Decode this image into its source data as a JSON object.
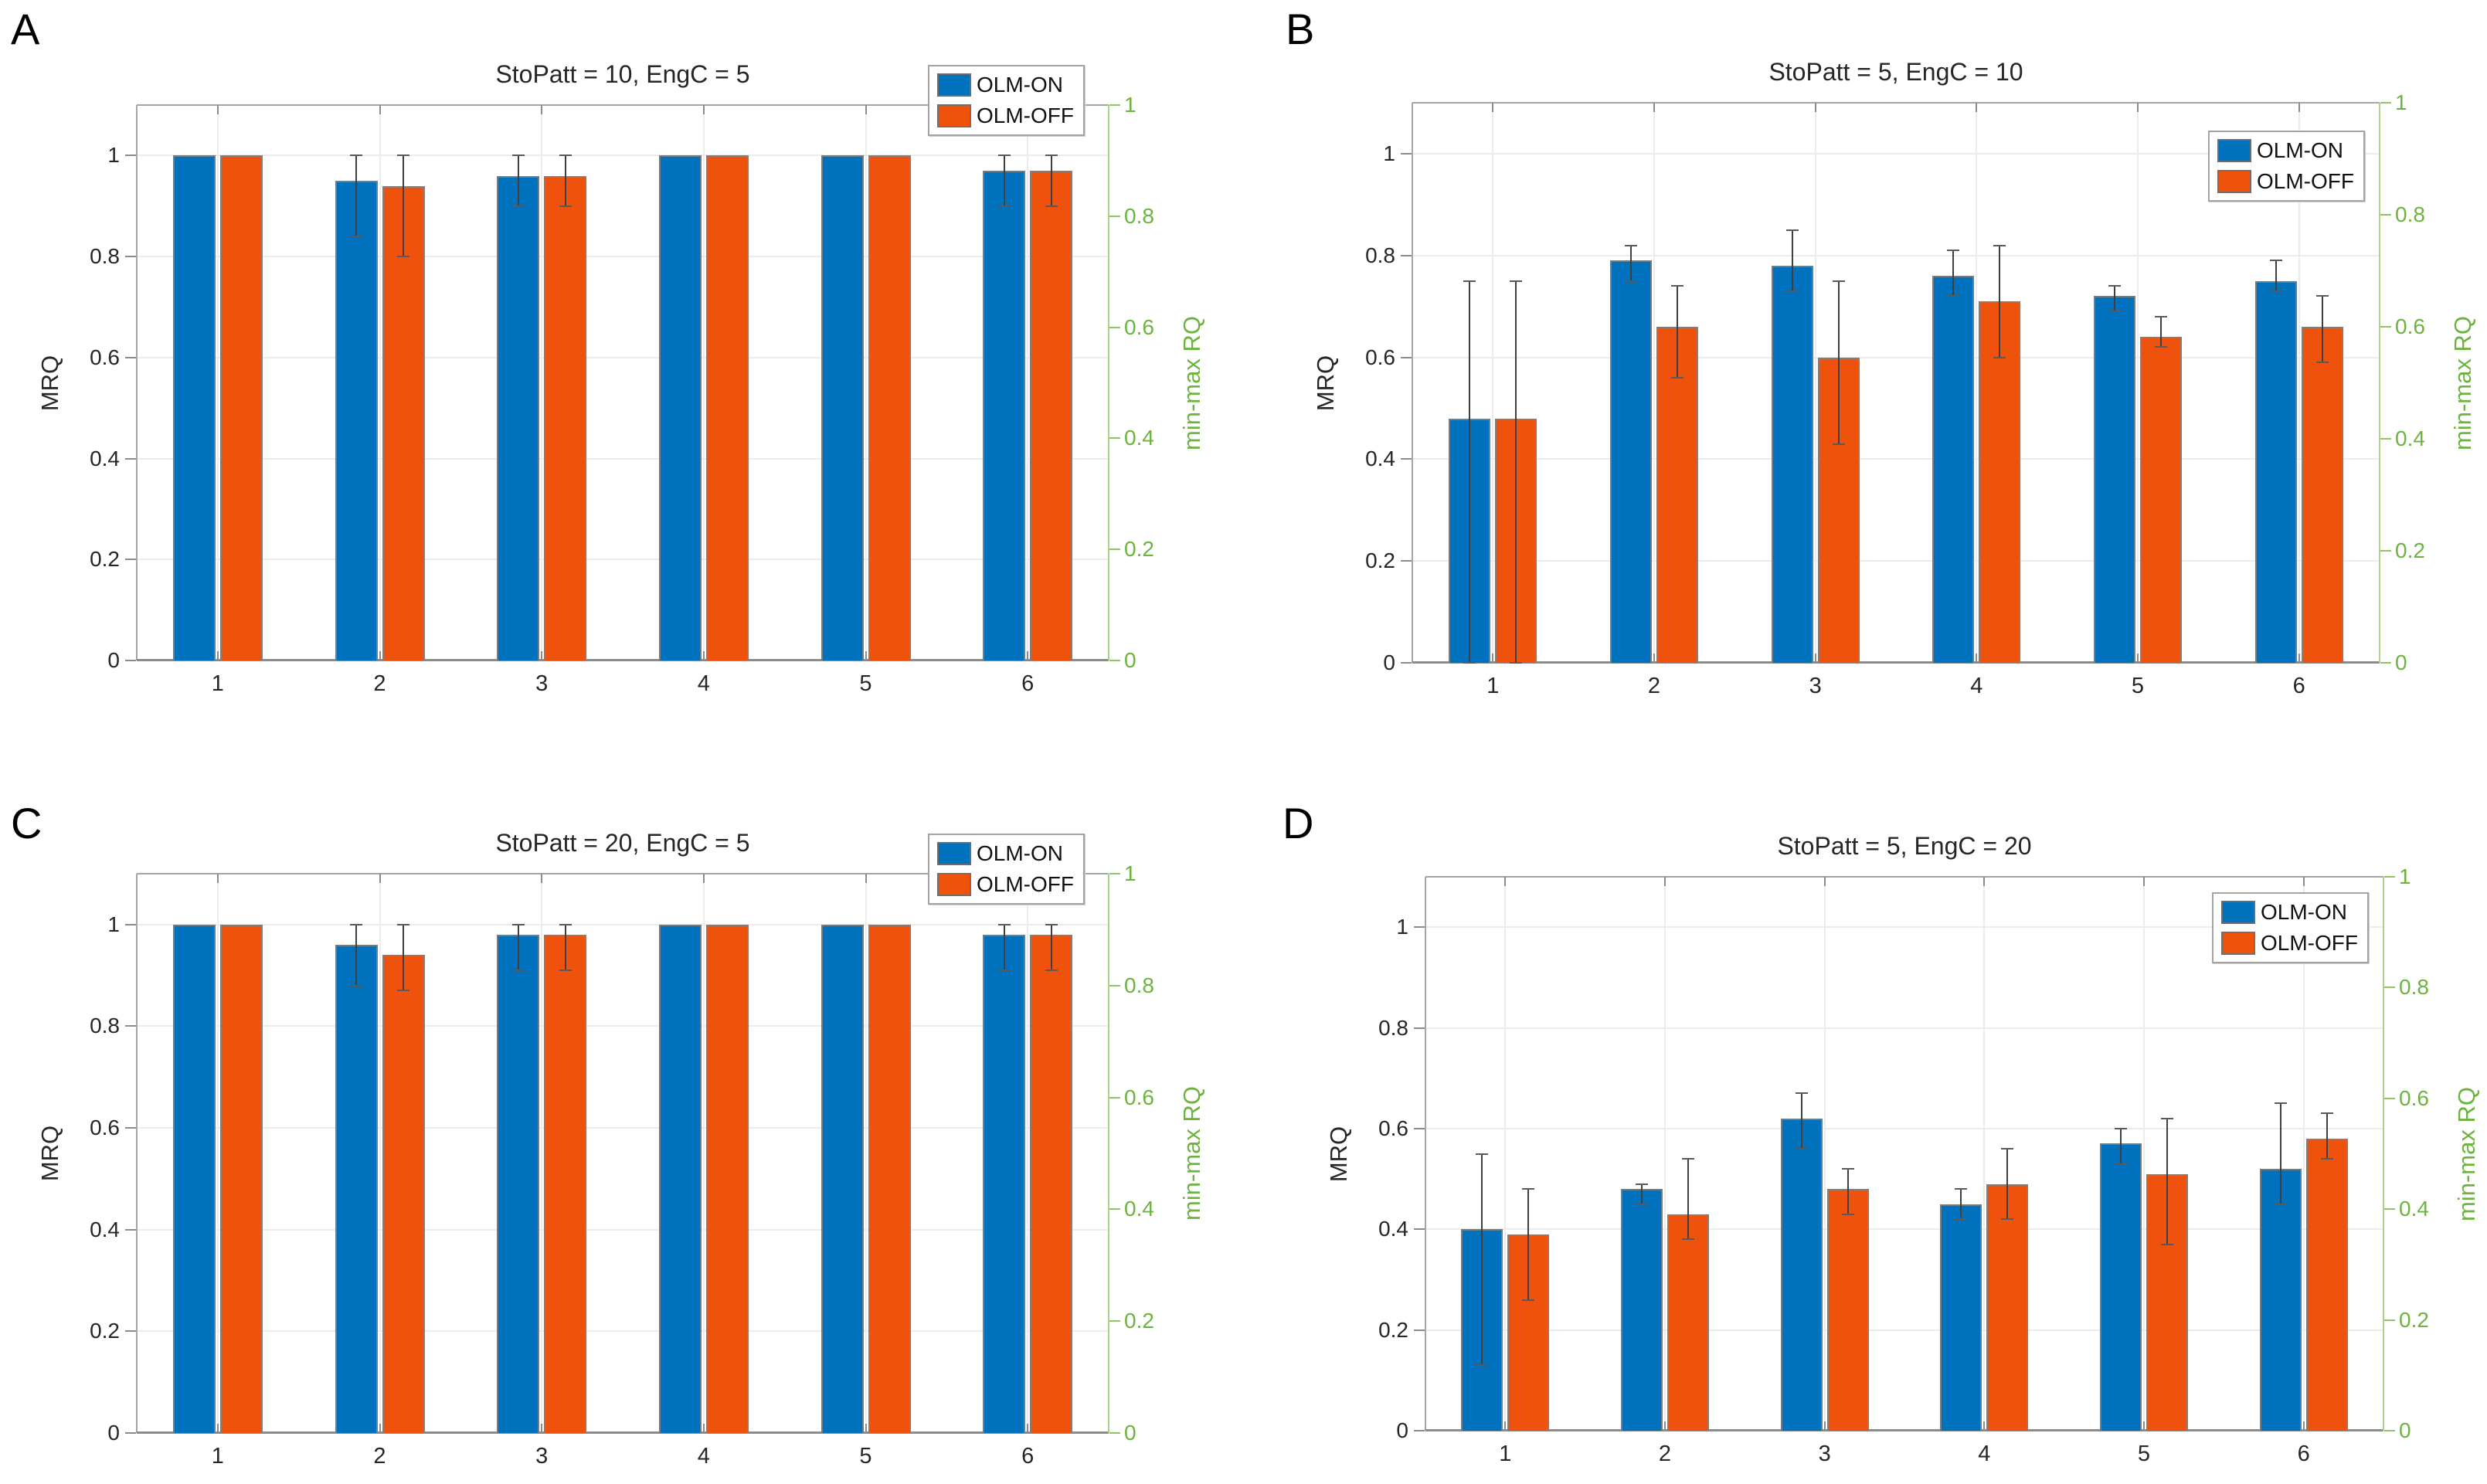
{
  "figure": {
    "background": "#ffffff",
    "colors": {
      "olm_on": "#0072BD",
      "olm_off": "#EE520D",
      "right_axis_green": "#6cb33f",
      "grid": "#ececec",
      "spine_gray": "#9b9b9b",
      "error_bar": "#3f3f3f"
    },
    "legend_labels": [
      "OLM-ON",
      "OLM-OFF"
    ]
  },
  "chart_data": [
    {
      "type": "bar",
      "panel_letter": "A",
      "title": "StoPatt = 10, EngC = 5",
      "categories": [
        "1",
        "2",
        "3",
        "4",
        "5",
        "6"
      ],
      "series": [
        {
          "name": "OLM-ON",
          "color_key": "olm_on",
          "values": [
            1.0,
            0.95,
            0.96,
            1.0,
            1.0,
            0.97
          ],
          "err_lo": [
            null,
            0.84,
            0.9,
            null,
            null,
            0.9
          ],
          "err_hi": [
            null,
            1.0,
            1.0,
            null,
            null,
            1.0
          ]
        },
        {
          "name": "OLM-OFF",
          "color_key": "olm_off",
          "values": [
            1.0,
            0.94,
            0.96,
            1.0,
            1.0,
            0.97
          ],
          "err_lo": [
            null,
            0.8,
            0.9,
            null,
            null,
            0.9
          ],
          "err_hi": [
            null,
            1.0,
            1.0,
            null,
            null,
            1.0
          ]
        }
      ],
      "ylabel_left": "MRQ",
      "ylabel_right": "min-max RQ",
      "yticks_left": [
        0,
        0.2,
        0.4,
        0.6,
        0.8,
        1
      ],
      "yticks_right": [
        0,
        0.2,
        0.4,
        0.6,
        0.8,
        1
      ],
      "ylim_left": [
        0,
        1.1
      ],
      "ylim_right": [
        0,
        1
      ],
      "grid": true,
      "legend_position": "top-right-straddle"
    },
    {
      "type": "bar",
      "panel_letter": "B",
      "title": "StoPatt = 5, EngC = 10",
      "categories": [
        "1",
        "2",
        "3",
        "4",
        "5",
        "6"
      ],
      "series": [
        {
          "name": "OLM-ON",
          "color_key": "olm_on",
          "values": [
            0.48,
            0.79,
            0.78,
            0.76,
            0.72,
            0.75
          ],
          "err_lo": [
            0.0,
            0.75,
            0.73,
            0.72,
            0.69,
            0.73
          ],
          "err_hi": [
            0.75,
            0.82,
            0.85,
            0.81,
            0.74,
            0.79
          ]
        },
        {
          "name": "OLM-OFF",
          "color_key": "olm_off",
          "values": [
            0.48,
            0.66,
            0.6,
            0.71,
            0.64,
            0.66
          ],
          "err_lo": [
            0.0,
            0.56,
            0.43,
            0.6,
            0.62,
            0.59
          ],
          "err_hi": [
            0.75,
            0.74,
            0.75,
            0.82,
            0.68,
            0.72
          ]
        }
      ],
      "ylabel_left": "MRQ",
      "ylabel_right": "min-max RQ",
      "yticks_left": [
        0,
        0.2,
        0.4,
        0.6,
        0.8,
        1
      ],
      "yticks_right": [
        0,
        0.2,
        0.4,
        0.6,
        0.8,
        1
      ],
      "ylim_left": [
        0,
        1.1
      ],
      "ylim_right": [
        0,
        1
      ],
      "grid": true,
      "legend_position": "inside-top-right"
    },
    {
      "type": "bar",
      "panel_letter": "C",
      "title": "StoPatt = 20, EngC = 5",
      "categories": [
        "1",
        "2",
        "3",
        "4",
        "5",
        "6"
      ],
      "series": [
        {
          "name": "OLM-ON",
          "color_key": "olm_on",
          "values": [
            1.0,
            0.96,
            0.98,
            1.0,
            1.0,
            0.98
          ],
          "err_lo": [
            null,
            0.88,
            0.91,
            null,
            null,
            0.91
          ],
          "err_hi": [
            null,
            1.0,
            1.0,
            null,
            null,
            1.0
          ]
        },
        {
          "name": "OLM-OFF",
          "color_key": "olm_off",
          "values": [
            1.0,
            0.94,
            0.98,
            1.0,
            1.0,
            0.98
          ],
          "err_lo": [
            null,
            0.87,
            0.91,
            null,
            null,
            0.91
          ],
          "err_hi": [
            null,
            1.0,
            1.0,
            null,
            null,
            1.0
          ]
        }
      ],
      "ylabel_left": "MRQ",
      "ylabel_right": "min-max RQ",
      "yticks_left": [
        0,
        0.2,
        0.4,
        0.6,
        0.8,
        1
      ],
      "yticks_right": [
        0,
        0.2,
        0.4,
        0.6,
        0.8,
        1
      ],
      "ylim_left": [
        0,
        1.1
      ],
      "ylim_right": [
        0,
        1
      ],
      "grid": true,
      "legend_position": "top-right-straddle"
    },
    {
      "type": "bar",
      "panel_letter": "D",
      "title": "StoPatt = 5, EngC = 20",
      "categories": [
        "1",
        "2",
        "3",
        "4",
        "5",
        "6"
      ],
      "series": [
        {
          "name": "OLM-ON",
          "color_key": "olm_on",
          "values": [
            0.4,
            0.48,
            0.62,
            0.45,
            0.57,
            0.52
          ],
          "err_lo": [
            0.13,
            0.45,
            0.56,
            0.42,
            0.53,
            0.45
          ],
          "err_hi": [
            0.55,
            0.49,
            0.67,
            0.48,
            0.6,
            0.65
          ]
        },
        {
          "name": "OLM-OFF",
          "color_key": "olm_off",
          "values": [
            0.39,
            0.43,
            0.48,
            0.49,
            0.51,
            0.58
          ],
          "err_lo": [
            0.26,
            0.38,
            0.43,
            0.42,
            0.37,
            0.54
          ],
          "err_hi": [
            0.48,
            0.54,
            0.52,
            0.56,
            0.62,
            0.63
          ]
        }
      ],
      "ylabel_left": "MRQ",
      "ylabel_right": "min-max RQ",
      "yticks_left": [
        0,
        0.2,
        0.4,
        0.6,
        0.8,
        1
      ],
      "yticks_right": [
        0,
        0.2,
        0.4,
        0.6,
        0.8,
        1
      ],
      "ylim_left": [
        0,
        1.1
      ],
      "ylim_right": [
        0,
        1
      ],
      "grid": true,
      "legend_position": "inside-top-right"
    }
  ]
}
